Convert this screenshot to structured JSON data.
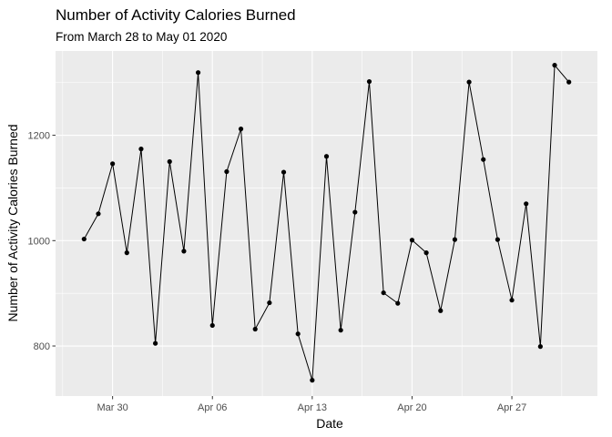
{
  "chart_data": {
    "type": "line",
    "title": "Number of Activity Calories Burned",
    "subtitle": "From March 28 to May 01 2020",
    "xlabel": "Date",
    "ylabel": "Number of Activity Calories Burned",
    "x_tick_labels": [
      "Mar 30",
      "Apr 06",
      "Apr 13",
      "Apr 20",
      "Apr 27"
    ],
    "x_ticks": [
      "2020-03-30",
      "2020-04-06",
      "2020-04-13",
      "2020-04-20",
      "2020-04-27"
    ],
    "y_ticks": [
      800,
      1000,
      1200
    ],
    "xlim": [
      "2020-03-26",
      "2020-05-03"
    ],
    "ylim": [
      705,
      1360
    ],
    "grid": true,
    "points": [
      {
        "x": "2020-03-28",
        "y": 1003
      },
      {
        "x": "2020-03-29",
        "y": 1051
      },
      {
        "x": "2020-03-30",
        "y": 1146
      },
      {
        "x": "2020-03-31",
        "y": 977
      },
      {
        "x": "2020-04-01",
        "y": 1174
      },
      {
        "x": "2020-04-02",
        "y": 805
      },
      {
        "x": "2020-04-03",
        "y": 1150
      },
      {
        "x": "2020-04-04",
        "y": 980
      },
      {
        "x": "2020-04-05",
        "y": 1319
      },
      {
        "x": "2020-04-06",
        "y": 839
      },
      {
        "x": "2020-04-07",
        "y": 1131
      },
      {
        "x": "2020-04-08",
        "y": 1212
      },
      {
        "x": "2020-04-09",
        "y": 832
      },
      {
        "x": "2020-04-10",
        "y": 882
      },
      {
        "x": "2020-04-11",
        "y": 1130
      },
      {
        "x": "2020-04-12",
        "y": 823
      },
      {
        "x": "2020-04-13",
        "y": 735
      },
      {
        "x": "2020-04-14",
        "y": 1160
      },
      {
        "x": "2020-04-15",
        "y": 830
      },
      {
        "x": "2020-04-16",
        "y": 1054
      },
      {
        "x": "2020-04-17",
        "y": 1302
      },
      {
        "x": "2020-04-18",
        "y": 901
      },
      {
        "x": "2020-04-19",
        "y": 881
      },
      {
        "x": "2020-04-20",
        "y": 1001
      },
      {
        "x": "2020-04-21",
        "y": 977
      },
      {
        "x": "2020-04-22",
        "y": 867
      },
      {
        "x": "2020-04-23",
        "y": 1002
      },
      {
        "x": "2020-04-24",
        "y": 1301
      },
      {
        "x": "2020-04-25",
        "y": 1154
      },
      {
        "x": "2020-04-26",
        "y": 1002
      },
      {
        "x": "2020-04-27",
        "y": 887
      },
      {
        "x": "2020-04-28",
        "y": 1070
      },
      {
        "x": "2020-04-29",
        "y": 799
      },
      {
        "x": "2020-04-30",
        "y": 1333
      },
      {
        "x": "2020-05-01",
        "y": 1301
      }
    ],
    "colors": {
      "panel_background": "#ebebeb",
      "grid_major": "#ffffff",
      "line": "#000000",
      "point": "#000000"
    }
  }
}
